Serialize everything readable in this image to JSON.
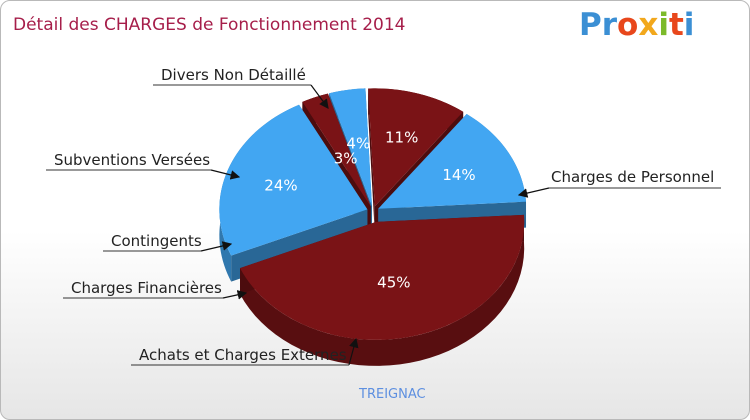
{
  "header": {
    "title": "Détail des CHARGES de Fonctionnement 2014",
    "logo_parts": [
      "Pr",
      "o",
      "x",
      "i",
      "t",
      "i"
    ]
  },
  "footer": {
    "place": "TREIGNAC"
  },
  "colors": {
    "blue": "#42a6f2",
    "dark_red": "#7a1316",
    "title": "#a61e4a"
  },
  "chart_data": {
    "type": "pie",
    "title": "Détail des CHARGES de Fonctionnement 2014",
    "slices": [
      {
        "label": "Charges de Personnel",
        "value": 45,
        "value_label": "45%",
        "color": "#7a1316"
      },
      {
        "label": "Achats et Charges Externes",
        "value": 24,
        "value_label": "24%",
        "color": "#42a6f2"
      },
      {
        "label": "Charges Financières",
        "value": 3,
        "value_label": "3%",
        "color": "#7a1316"
      },
      {
        "label": "Contingents",
        "value": 4,
        "value_label": "4%",
        "color": "#42a6f2"
      },
      {
        "label": "Subventions Versées",
        "value": 11,
        "value_label": "11%",
        "color": "#7a1316"
      },
      {
        "label": "Divers Non Détaillé",
        "value": 14,
        "value_label": "14%",
        "color": "#42a6f2"
      }
    ]
  }
}
